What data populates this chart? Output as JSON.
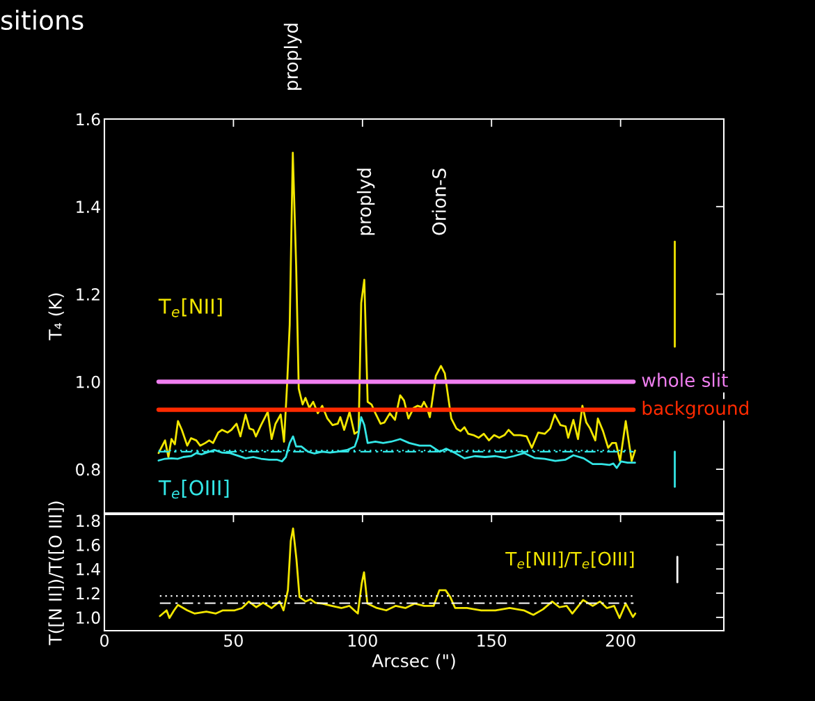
{
  "chart_data": [
    {
      "type": "line",
      "title": "sitions",
      "ylabel": "T₄ (K)",
      "xlim": [
        0,
        240
      ],
      "ylim": [
        0.7,
        1.6
      ],
      "xticks": [
        0,
        50,
        100,
        150,
        200
      ],
      "yticks": [
        {
          "value": 0.8,
          "label": "0.8"
        },
        {
          "value": 1.0,
          "label": "1.0"
        },
        {
          "value": 1.2,
          "label": "1.2"
        },
        {
          "value": 1.4,
          "label": "1.4"
        },
        {
          "value": 1.6,
          "label": "1.6"
        }
      ],
      "tick_labels": "y",
      "grid": false,
      "annotations": [
        "proplyd",
        "proplyd",
        "Orion-S"
      ],
      "series": [
        {
          "name": "T$_{e}$[NII]",
          "color": "#f2e600",
          "x": [
            21.0,
            23.5,
            24.8,
            26.0,
            27.3,
            28.5,
            30.0,
            32.1,
            33.6,
            35.6,
            37.1,
            39.1,
            40.6,
            42.1,
            44.1,
            45.6,
            47.7,
            49.2,
            51.2,
            52.7,
            54.7,
            56.2,
            57.7,
            58.7,
            60.7,
            63.3,
            64.8,
            66.3,
            68.3,
            69.6,
            70.8,
            71.8,
            73.0,
            74.3,
            75.3,
            76.8,
            77.9,
            79.4,
            80.9,
            82.7,
            84.4,
            86.4,
            88.4,
            90.4,
            91.4,
            92.9,
            95.0,
            96.9,
            98.5,
            99.5,
            100.7,
            102.0,
            103.5,
            105.0,
            107.0,
            108.5,
            110.6,
            112.6,
            114.6,
            116.1,
            117.8,
            119.8,
            121.3,
            122.8,
            123.8,
            124.9,
            126.1,
            128.4,
            130.4,
            131.9,
            134.4,
            136.4,
            138.0,
            139.5,
            141.0,
            143.0,
            145.0,
            147.0,
            149.0,
            151.0,
            153.0,
            155.0,
            156.6,
            158.6,
            161.1,
            163.6,
            165.6,
            168.1,
            170.6,
            172.7,
            174.5,
            176.7,
            178.7,
            179.7,
            181.7,
            183.5,
            185.2,
            186.7,
            188.2,
            190.2,
            191.2,
            193.2,
            195.2,
            196.7,
            198.2,
            199.8,
            202.0,
            204.3,
            205.6
          ],
          "values": [
            0.837,
            0.866,
            0.828,
            0.869,
            0.857,
            0.91,
            0.89,
            0.854,
            0.871,
            0.866,
            0.854,
            0.86,
            0.866,
            0.86,
            0.884,
            0.89,
            0.884,
            0.89,
            0.904,
            0.875,
            0.925,
            0.893,
            0.89,
            0.875,
            0.901,
            0.931,
            0.869,
            0.904,
            0.925,
            0.863,
            0.995,
            1.13,
            1.523,
            1.265,
            0.984,
            0.948,
            0.963,
            0.94,
            0.954,
            0.928,
            0.945,
            0.916,
            0.901,
            0.904,
            0.919,
            0.89,
            0.931,
            0.881,
            0.887,
            1.18,
            1.233,
            0.954,
            0.948,
            0.928,
            0.904,
            0.907,
            0.928,
            0.913,
            0.969,
            0.957,
            0.916,
            0.94,
            0.945,
            0.942,
            0.954,
            0.942,
            0.919,
            1.013,
            1.036,
            1.019,
            0.916,
            0.893,
            0.887,
            0.896,
            0.881,
            0.878,
            0.872,
            0.881,
            0.866,
            0.878,
            0.872,
            0.878,
            0.89,
            0.878,
            0.878,
            0.875,
            0.849,
            0.884,
            0.881,
            0.893,
            0.925,
            0.901,
            0.898,
            0.872,
            0.913,
            0.869,
            0.945,
            0.907,
            0.893,
            0.866,
            0.916,
            0.887,
            0.849,
            0.86,
            0.86,
            0.819,
            0.91,
            0.819,
            0.843
          ]
        },
        {
          "name": "T$_{e}$[OIII]",
          "color": "#33e6e6",
          "x": [
            21.0,
            23.5,
            26.0,
            28.5,
            30.6,
            33.6,
            35.6,
            37.6,
            40.6,
            42.6,
            45.6,
            48.7,
            51.7,
            54.7,
            57.7,
            60.7,
            63.8,
            66.8,
            68.8,
            70.3,
            71.8,
            73.1,
            74.3,
            76.3,
            78.9,
            81.4,
            84.4,
            87.4,
            90.4,
            94.0,
            97.0,
            98.2,
            99.5,
            100.7,
            102.0,
            105.0,
            108.0,
            111.1,
            114.6,
            118.1,
            122.1,
            126.3,
            129.9,
            132.4,
            135.9,
            139.5,
            143.5,
            147.5,
            151.5,
            155.5,
            158.6,
            162.6,
            166.6,
            170.6,
            174.7,
            178.7,
            181.7,
            185.7,
            189.2,
            192.7,
            195.7,
            197.2,
            198.5,
            200.2,
            202.7,
            205.6
          ],
          "values": [
            0.82,
            0.824,
            0.825,
            0.824,
            0.828,
            0.83,
            0.837,
            0.834,
            0.84,
            0.844,
            0.838,
            0.837,
            0.831,
            0.825,
            0.828,
            0.824,
            0.822,
            0.822,
            0.818,
            0.828,
            0.86,
            0.875,
            0.852,
            0.852,
            0.84,
            0.836,
            0.84,
            0.838,
            0.84,
            0.844,
            0.852,
            0.872,
            0.919,
            0.901,
            0.86,
            0.863,
            0.86,
            0.863,
            0.869,
            0.86,
            0.854,
            0.854,
            0.84,
            0.847,
            0.837,
            0.825,
            0.83,
            0.828,
            0.83,
            0.826,
            0.83,
            0.837,
            0.826,
            0.824,
            0.819,
            0.822,
            0.832,
            0.825,
            0.812,
            0.812,
            0.81,
            0.813,
            0.803,
            0.818,
            0.815,
            0.815
          ]
        },
        {
          "name": "whole slit",
          "color": "#f07ff0",
          "x": [
            21,
            205
          ],
          "values": [
            1.0,
            1.0
          ]
        },
        {
          "name": "background",
          "color": "#ff2a00",
          "x": [
            21,
            205
          ],
          "values": [
            0.936,
            0.936
          ]
        },
        {
          "color": "#33e6e6",
          "line_style": "dotted",
          "x": [
            21,
            205
          ],
          "values": [
            0.843,
            0.843
          ]
        },
        {
          "color": "#33e6e6",
          "line_style": "dashed",
          "x": [
            21,
            205
          ],
          "values": [
            0.84,
            0.84
          ]
        },
        {
          "color": "#f2e600",
          "x": [
            221,
            221
          ],
          "values": [
            1.08,
            1.32
          ]
        },
        {
          "color": "#33e6e6",
          "x": [
            221,
            221
          ],
          "values": [
            0.76,
            0.84
          ]
        }
      ]
    },
    {
      "type": "line",
      "xlabel": "Arcsec (\")",
      "ylabel": "T([N II])/T([O III])",
      "xlim": [
        0,
        240
      ],
      "ylim": [
        0.89,
        1.85
      ],
      "xticks": [
        0,
        50,
        100,
        150,
        200
      ],
      "yticks": [
        {
          "value": 1.0,
          "label": "1.0"
        },
        {
          "value": 1.2,
          "label": "1.2"
        },
        {
          "value": 1.4,
          "label": "1.4"
        },
        {
          "value": 1.6,
          "label": "1.6"
        },
        {
          "value": 1.8,
          "label": "1.8"
        }
      ],
      "grid": false,
      "series": [
        {
          "name": "T$_{e}$[NII]/T$_{e}$[OIII]",
          "color": "#f2e600",
          "x": [
            21.5,
            24.1,
            25.2,
            27.0,
            28.5,
            32.1,
            34.9,
            39.5,
            43.2,
            45.9,
            50.5,
            53.3,
            56.0,
            58.8,
            61.5,
            64.8,
            67.9,
            69.4,
            71.1,
            72.2,
            73.1,
            74.4,
            75.6,
            78.0,
            79.9,
            81.7,
            84.5,
            88.1,
            91.8,
            94.9,
            98.2,
            99.7,
            100.6,
            101.9,
            105.6,
            109.2,
            112.9,
            116.6,
            120.3,
            123.9,
            127.6,
            129.8,
            132.2,
            134.0,
            135.9,
            140.5,
            146.0,
            151.5,
            157.0,
            162.5,
            166.2,
            169.9,
            173.5,
            176.3,
            179.1,
            181.3,
            185.5,
            189.2,
            192.0,
            194.7,
            197.5,
            199.6,
            202.0,
            204.8,
            205.7
          ],
          "values": [
            1.011,
            1.058,
            0.995,
            1.058,
            1.103,
            1.058,
            1.032,
            1.047,
            1.032,
            1.058,
            1.058,
            1.077,
            1.131,
            1.084,
            1.121,
            1.077,
            1.131,
            1.058,
            1.224,
            1.63,
            1.734,
            1.483,
            1.168,
            1.131,
            1.15,
            1.121,
            1.114,
            1.095,
            1.077,
            1.095,
            1.032,
            1.28,
            1.372,
            1.114,
            1.077,
            1.058,
            1.095,
            1.077,
            1.114,
            1.095,
            1.095,
            1.224,
            1.224,
            1.168,
            1.077,
            1.077,
            1.058,
            1.058,
            1.077,
            1.058,
            1.021,
            1.066,
            1.131,
            1.084,
            1.095,
            1.032,
            1.143,
            1.095,
            1.131,
            1.077,
            1.095,
            0.995,
            1.114,
            1.003,
            1.032
          ]
        },
        {
          "color": "#ffffff",
          "line_style": "dotted",
          "x": [
            21.5,
            205
          ],
          "values": [
            1.177,
            1.177
          ]
        },
        {
          "color": "#ffffff",
          "line_style": "dashed",
          "x": [
            21.5,
            205
          ],
          "values": [
            1.117,
            1.117
          ]
        },
        {
          "color": "#ffffff",
          "x": [
            222,
            222
          ],
          "values": [
            1.29,
            1.5
          ]
        }
      ]
    }
  ]
}
